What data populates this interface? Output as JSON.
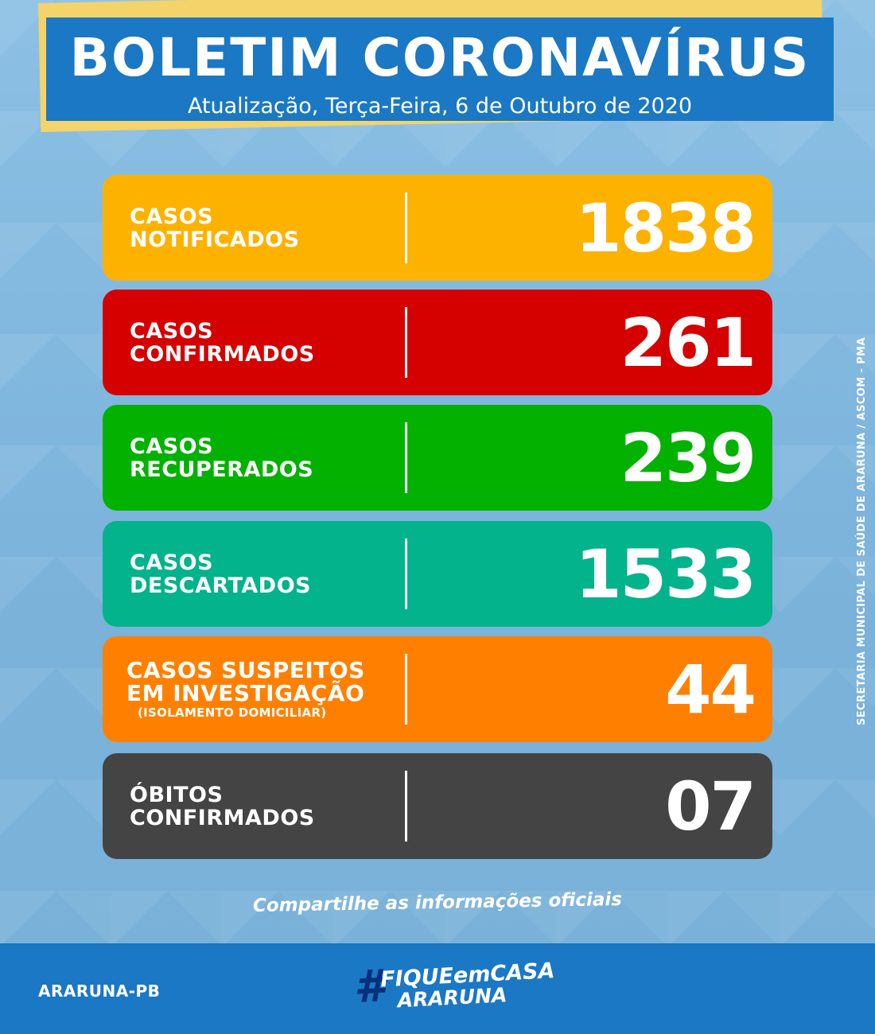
{
  "header": {
    "title": "BOLETIM CORONAVÍRUS",
    "date": "Atualização, Terça-Feira, 6 de Outubro de 2020"
  },
  "cards": [
    {
      "line1": "CASOS",
      "line2": "NOTIFICADOS",
      "value": "1838",
      "color": "#fdb200"
    },
    {
      "line1": "CASOS",
      "line2": "CONFIRMADOS",
      "value": "261",
      "color": "#d50000"
    },
    {
      "line1": "CASOS",
      "line2": "RECUPERADOS",
      "value": "239",
      "color": "#03b200"
    },
    {
      "line1": "CASOS",
      "line2": "DESCARTADOS",
      "value": "1533",
      "color": "#03b38b"
    },
    {
      "line1": "CASOS SUSPEITOS",
      "line2": "EM INVESTIGAÇÃO",
      "line3": "(ISOLAMENTO DOMICILIAR)",
      "value": "44",
      "color": "#ff8000"
    },
    {
      "line1": "ÓBITOS",
      "line2": "CONFIRMADOS",
      "value": "07",
      "color": "#444444"
    }
  ],
  "side_credit": "SECRETARIA MUNICIPAL DE SAÚDE DE ARARUNA / ASCOM - PMA",
  "share_text": "Compartilhe as informações oficiais",
  "footer": {
    "city": "ARARUNA-PB",
    "hashtag_symbol": "#",
    "hashtag_line1": "FIQUEemCASA",
    "hashtag_line2": "ARARUNA"
  }
}
